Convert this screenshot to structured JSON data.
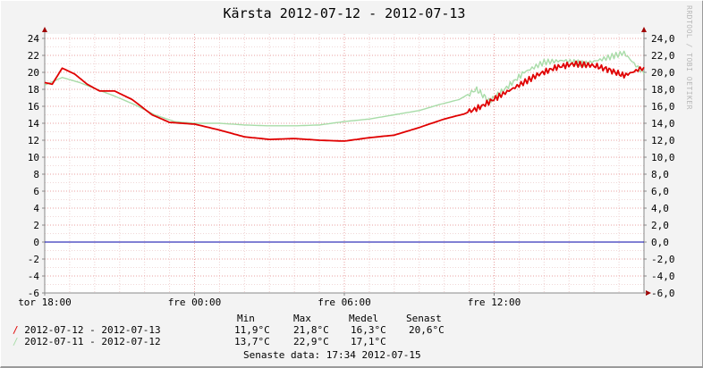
{
  "title": "Kärsta 2012-07-12 - 2012-07-13",
  "watermark": "RRDTOOL / TOBI OETIKER",
  "chart_data": {
    "type": "line",
    "title": "Kärsta 2012-07-12 - 2012-07-13",
    "ylim": [
      -6,
      25
    ],
    "y_ticks_left": [
      "24",
      "22",
      "20",
      "18",
      "16",
      "14",
      "12",
      "10",
      "8",
      "6",
      "4",
      "2",
      "0",
      "-2",
      "-4",
      "-6"
    ],
    "y_ticks_right": [
      "24,0",
      "22,0",
      "20,0",
      "18,0",
      "16,0",
      "14,0",
      "12,0",
      "10,0",
      "8,0",
      "6,0",
      "4,0",
      "2,0",
      "0,0",
      "-2,0",
      "-4,0",
      "-6,0"
    ],
    "x_tick_labels": [
      "tor 18:00",
      "fre 00:00",
      "fre 06:00",
      "fre 12:00"
    ],
    "x_range_hours": [
      0,
      24
    ],
    "x_tick_hours": [
      0,
      6,
      12,
      18
    ],
    "grid": true,
    "zero_line_color": "#0000aa",
    "series": [
      {
        "name": "2012-07-12 - 2012-07-13",
        "color": "#e00000",
        "x_hours": [
          0,
          0.3,
          0.7,
          1.2,
          1.7,
          2.2,
          2.8,
          3.5,
          4.3,
          5.0,
          6.0,
          7.0,
          8.0,
          9.0,
          10.0,
          11.0,
          12.0,
          13.0,
          14.0,
          15.0,
          16.0,
          16.8,
          17.5,
          18.2,
          19.0,
          19.8,
          20.5,
          21.2,
          22.0,
          22.6,
          23.2,
          24.0
        ],
        "values": [
          18.8,
          18.6,
          20.5,
          19.8,
          18.6,
          17.8,
          17.8,
          16.8,
          15.0,
          14.1,
          13.9,
          13.2,
          12.4,
          12.1,
          12.2,
          12.0,
          11.9,
          12.3,
          12.6,
          13.5,
          14.5,
          15.1,
          16.0,
          17.2,
          18.5,
          19.8,
          20.6,
          21.0,
          20.8,
          20.3,
          19.6,
          20.6
        ]
      },
      {
        "name": "2012-07-11 - 2012-07-12",
        "color": "#a8dca8",
        "x_hours": [
          0,
          0.7,
          1.4,
          2.0,
          2.8,
          3.6,
          4.4,
          5.2,
          6.0,
          7.0,
          8.0,
          9.0,
          10.0,
          11.0,
          12.0,
          13.0,
          14.0,
          15.0,
          15.8,
          16.6,
          17.3,
          17.8,
          18.5,
          19.2,
          20.0,
          20.8,
          21.6,
          22.4,
          23.2,
          24.0
        ],
        "values": [
          18.5,
          19.4,
          18.8,
          18.1,
          17.2,
          16.2,
          15.0,
          14.2,
          14.0,
          14.0,
          13.8,
          13.7,
          13.7,
          13.8,
          14.2,
          14.5,
          15.0,
          15.5,
          16.2,
          16.8,
          18.0,
          16.6,
          18.2,
          20.0,
          21.2,
          21.4,
          21.0,
          21.6,
          22.3,
          19.8
        ]
      }
    ]
  },
  "legend": [
    {
      "label": "2012-07-12 - 2012-07-13",
      "color": "#e00000"
    },
    {
      "label": "2012-07-11 - 2012-07-12",
      "color": "#a8dca8"
    }
  ],
  "stats": {
    "headers": [
      "Min",
      "Max",
      "Medel",
      "Senast"
    ],
    "rows": [
      [
        "11,9°C",
        "21,8°C",
        "16,3°C",
        "20,6°C"
      ],
      [
        "13,7°C",
        "22,9°C",
        "17,1°C",
        ""
      ]
    ]
  },
  "footer": "Senaste data: 17:34 2012-07-15"
}
